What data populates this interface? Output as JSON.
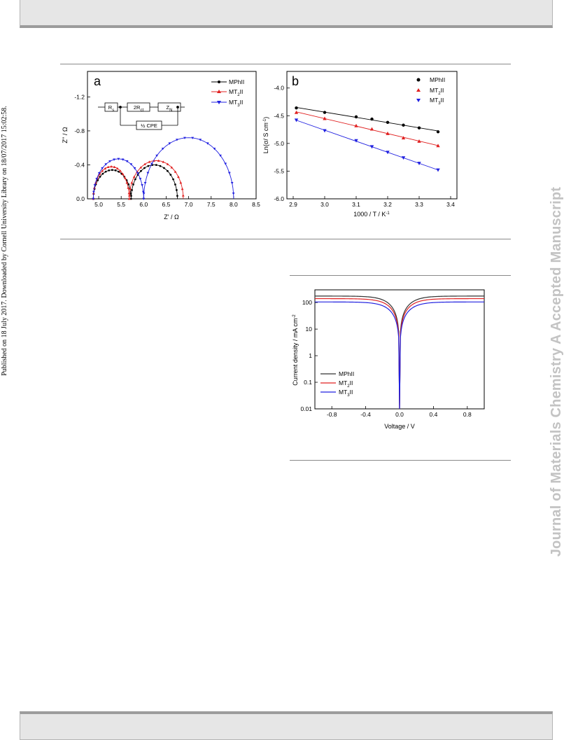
{
  "side_text": {
    "left": "Published on 18 July 2017. Downloaded by Cornell University Library on 18/07/2017 15:02:58.",
    "right": "Journal of Materials Chemistry A Accepted Manuscript"
  },
  "colors": {
    "black": "#000000",
    "red": "#e02020",
    "blue": "#2020e0"
  },
  "figure_top": {
    "panel_a": {
      "label": "a",
      "circuit": {
        "rs": "Rs",
        "rct": "2Rct",
        "zn": "ZN",
        "cpe": "½ CPE"
      },
      "legend": [
        "MPhII",
        "MT2II",
        "MT3II"
      ]
    },
    "panel_b": {
      "label": "b",
      "legend": [
        "MPhII",
        "MT2II",
        "MT3II"
      ]
    }
  },
  "chart_data": [
    {
      "type": "line",
      "panel": "a",
      "xlabel": "Z' / Ω",
      "ylabel": "Z'' / Ω",
      "xlim": [
        4.75,
        8.5
      ],
      "ylim": [
        0.0,
        -1.5
      ],
      "xticks": [
        "5.0",
        "5.5",
        "6.0",
        "6.5",
        "7.0",
        "7.5",
        "8.0",
        "8.5"
      ],
      "yticks": [
        "0.0",
        "-0.4",
        "-0.8",
        "-1.2"
      ],
      "series": [
        {
          "name": "MPhII",
          "color": "#000000",
          "marker": "circle",
          "arcs": [
            {
              "x_start": 4.88,
              "x_end": 5.72,
              "depth": 0.34
            },
            {
              "x_start": 5.72,
              "x_end": 6.75,
              "depth": 0.4
            }
          ]
        },
        {
          "name": "MT2II",
          "color": "#e02020",
          "marker": "triangle-up",
          "arcs": [
            {
              "x_start": 4.88,
              "x_end": 5.68,
              "depth": 0.38
            },
            {
              "x_start": 5.68,
              "x_end": 6.88,
              "depth": 0.45
            }
          ]
        },
        {
          "name": "MT3II",
          "color": "#2020e0",
          "marker": "triangle-down",
          "arcs": [
            {
              "x_start": 4.88,
              "x_end": 6.0,
              "depth": 0.47
            },
            {
              "x_start": 6.0,
              "x_end": 8.0,
              "depth": 0.72
            }
          ]
        }
      ]
    },
    {
      "type": "scatter",
      "panel": "b",
      "xlabel": "1000 / T / K-1",
      "ylabel": "Ln(σ/ S cm-1)",
      "xlim": [
        2.88,
        3.42
      ],
      "ylim": [
        -6.0,
        -3.7
      ],
      "xticks": [
        "2.9",
        "3.0",
        "3.1",
        "3.2",
        "3.3",
        "3.4"
      ],
      "yticks": [
        "-4.0",
        "-4.5",
        "-5.0",
        "-5.5",
        "-6.0"
      ],
      "x": [
        2.91,
        3.0,
        3.1,
        3.15,
        3.2,
        3.25,
        3.3,
        3.36
      ],
      "series": [
        {
          "name": "MPhII",
          "color": "#000000",
          "marker": "circle",
          "y": [
            -4.36,
            -4.44,
            -4.52,
            -4.56,
            -4.62,
            -4.67,
            -4.72,
            -4.79
          ]
        },
        {
          "name": "MT2II",
          "color": "#e02020",
          "marker": "triangle-up",
          "y": [
            -4.44,
            -4.55,
            -4.68,
            -4.74,
            -4.82,
            -4.9,
            -4.96,
            -5.04
          ]
        },
        {
          "name": "MT3II",
          "color": "#2020e0",
          "marker": "triangle-down",
          "y": [
            -4.58,
            -4.77,
            -4.95,
            -5.06,
            -5.16,
            -5.26,
            -5.36,
            -5.48
          ]
        }
      ]
    },
    {
      "type": "line",
      "panel": "jv",
      "xlabel": "Voltage / V",
      "ylabel": "Current density / mA cm-2",
      "xlim": [
        -1.0,
        1.0
      ],
      "ylim": [
        0.01,
        300
      ],
      "yscale": "log",
      "xticks": [
        "-0.8",
        "-0.4",
        "0.0",
        "0.4",
        "0.8"
      ],
      "yticks": [
        "0.01",
        "0.1",
        "1",
        "10",
        "100"
      ],
      "legend_placement": "lower-left",
      "series": [
        {
          "name": "MPhII",
          "color": "#333333",
          "plateau": 175
        },
        {
          "name": "MT2II",
          "color": "#e02020",
          "plateau": 140
        },
        {
          "name": "MT3II",
          "color": "#2020e0",
          "plateau": 105
        }
      ]
    }
  ]
}
